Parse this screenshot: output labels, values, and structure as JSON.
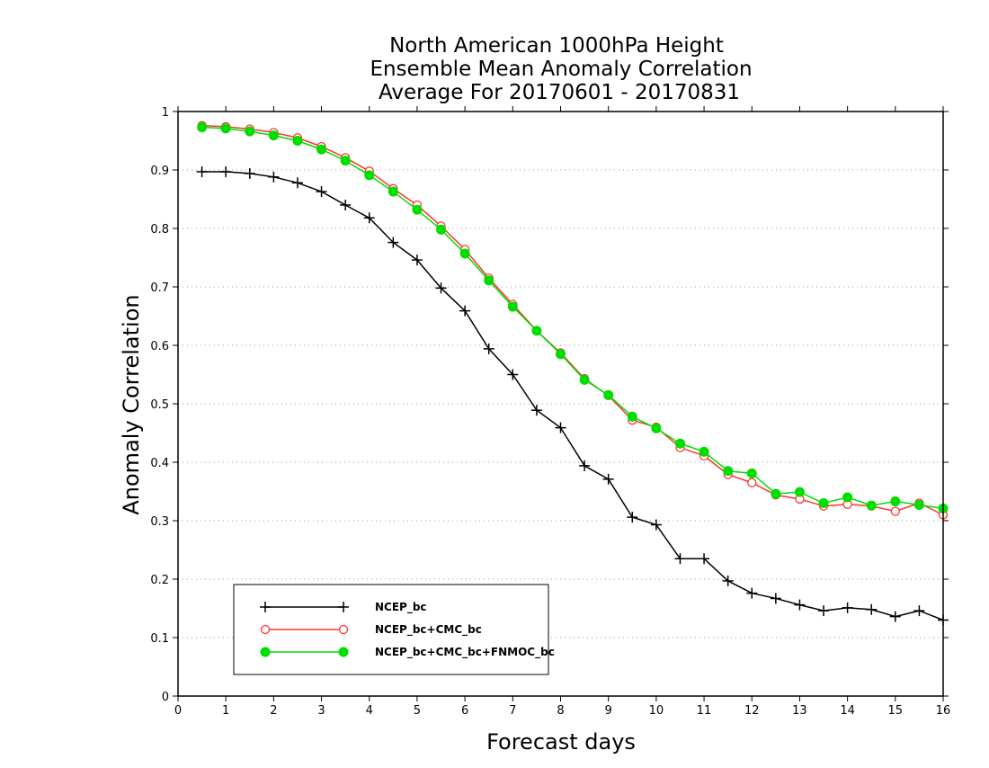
{
  "chart_data": {
    "type": "line",
    "title_lines": [
      "North American 1000hPa Height",
      "Ensemble Mean Anomaly Correlation",
      "Average For 20170601 - 20170831"
    ],
    "xlabel": "Forecast days",
    "ylabel": "Anomaly Correlation",
    "xlim": [
      0,
      16
    ],
    "ylim": [
      0,
      1
    ],
    "xticks": [
      0,
      1,
      2,
      3,
      4,
      5,
      6,
      7,
      8,
      9,
      10,
      11,
      12,
      13,
      14,
      15,
      16
    ],
    "yticks": [
      0,
      0.1,
      0.2,
      0.3,
      0.4,
      0.5,
      0.6,
      0.7,
      0.8,
      0.9,
      1
    ],
    "ytick_labels": [
      "0",
      "0.1",
      "0.2",
      "0.3",
      "0.4",
      "0.5",
      "0.6",
      "0.7",
      "0.8",
      "0.9",
      "1"
    ],
    "grid": "horizontal dotted",
    "legend_position": "bottom-left",
    "x": [
      0.5,
      1,
      1.5,
      2,
      2.5,
      3,
      3.5,
      4,
      4.5,
      5,
      5.5,
      6,
      6.5,
      7,
      7.5,
      8,
      8.5,
      9,
      9.5,
      10,
      10.5,
      11,
      11.5,
      12,
      12.5,
      13,
      13.5,
      14,
      14.5,
      15,
      15.5,
      16
    ],
    "series": [
      {
        "name": "NCEP_bc",
        "color": "#000000",
        "marker": "plus",
        "values": [
          0.897,
          0.897,
          0.894,
          0.888,
          0.878,
          0.863,
          0.84,
          0.818,
          0.776,
          0.746,
          0.698,
          0.659,
          0.594,
          0.55,
          0.489,
          0.459,
          0.394,
          0.371,
          0.306,
          0.293,
          0.235,
          0.235,
          0.197,
          0.176,
          0.167,
          0.156,
          0.146,
          0.151,
          0.148,
          0.136,
          0.146,
          0.13
        ]
      },
      {
        "name": "NCEP_bc+CMC_bc",
        "color": "#ff3333",
        "marker": "open-circle",
        "values": [
          0.976,
          0.974,
          0.97,
          0.964,
          0.955,
          0.94,
          0.921,
          0.898,
          0.868,
          0.84,
          0.804,
          0.764,
          0.715,
          0.67,
          0.625,
          0.587,
          0.543,
          0.514,
          0.472,
          0.46,
          0.425,
          0.411,
          0.379,
          0.365,
          0.344,
          0.337,
          0.325,
          0.328,
          0.325,
          0.316,
          0.33,
          0.31
        ]
      },
      {
        "name": "NCEP_bc+CMC_bc+FNMOC_bc",
        "color": "#00dd00",
        "marker": "filled-circle",
        "values": [
          0.973,
          0.971,
          0.966,
          0.959,
          0.95,
          0.935,
          0.916,
          0.891,
          0.863,
          0.832,
          0.798,
          0.757,
          0.711,
          0.666,
          0.625,
          0.585,
          0.541,
          0.515,
          0.478,
          0.458,
          0.432,
          0.418,
          0.385,
          0.381,
          0.346,
          0.349,
          0.33,
          0.34,
          0.326,
          0.333,
          0.327,
          0.321
        ]
      }
    ]
  }
}
